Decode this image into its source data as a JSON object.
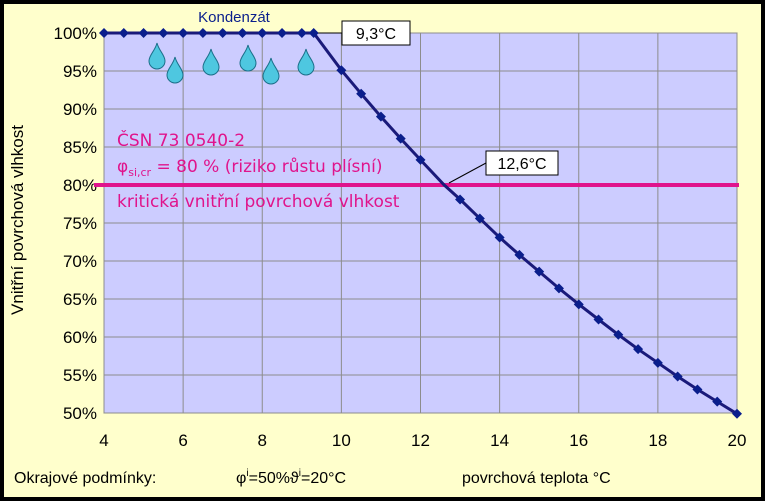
{
  "chart_data": {
    "type": "line",
    "x_values": [
      4,
      4.5,
      5,
      5.5,
      6,
      6.5,
      7,
      7.5,
      8,
      8.5,
      9,
      9.3,
      10,
      10.5,
      11,
      11.5,
      12,
      12.6,
      13,
      13.5,
      14,
      14.5,
      15,
      15.5,
      16,
      16.5,
      17,
      17.5,
      18,
      18.5,
      19,
      19.5,
      20
    ],
    "y_values": [
      100,
      100,
      100,
      100,
      100,
      100,
      100,
      100,
      100,
      100,
      100,
      100,
      95.1,
      92,
      89,
      86.1,
      83.3,
      80,
      78.1,
      75.6,
      73.1,
      70.8,
      68.6,
      66.4,
      64.3,
      62.3,
      60.3,
      58.4,
      56.6,
      54.8,
      53.1,
      51.5,
      49.9
    ],
    "xlim": [
      4,
      20
    ],
    "ylim": [
      50,
      100
    ],
    "x_ticks": [
      "4",
      "6",
      "8",
      "10",
      "12",
      "14",
      "16",
      "18",
      "20"
    ],
    "y_ticks": [
      "50%",
      "55%",
      "60%",
      "65%",
      "70%",
      "75%",
      "80%",
      "85%",
      "90%",
      "95%",
      "100%"
    ],
    "xlabel": "povrchová teplota °C",
    "ylabel": "Vnitřní povrchová vlhkost",
    "grid": true,
    "series_color": "#1a1a7a",
    "threshold": {
      "value": 80,
      "color": "#e0148c"
    }
  },
  "annotations": {
    "kondenzat": "Kondenzát",
    "callout_1": "9,3°C",
    "callout_2": "12,6°C",
    "norm_line_1": "ČSN 73 0540-2",
    "norm_phi": "φ",
    "norm_sub": "si,cr",
    "norm_rest": " = 80 % (riziko růstu plísní)",
    "norm_line_3": "kritická vnitřní povrchová vlhkost"
  },
  "conditions": {
    "label": "Okrajové podmínky:",
    "phi": "φ",
    "phi_sub": "i",
    "phi_val": "=50%",
    "theta": "ϑ",
    "theta_sub": "i",
    "theta_val": "=20°C"
  },
  "colors": {
    "plot_bg": "#ccccff",
    "panel_bg": "#ffffcc",
    "drop": "#4ec7e0"
  }
}
